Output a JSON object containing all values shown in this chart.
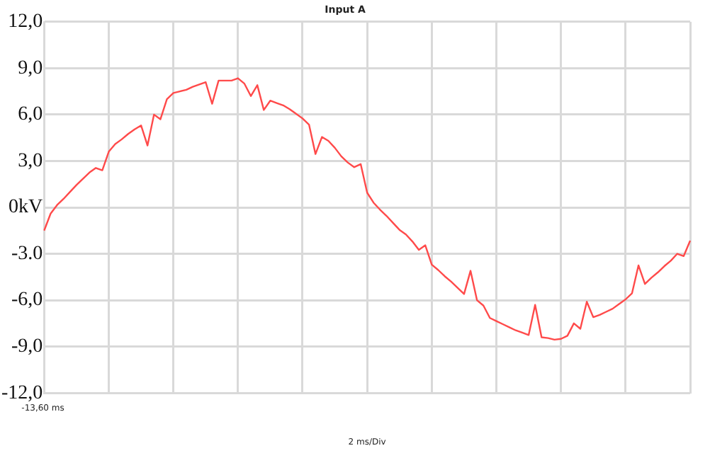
{
  "chart_data": {
    "type": "line",
    "title": "Input A",
    "xlabel": "2 ms/Div",
    "annotations": [
      "-13,60 ms"
    ],
    "categories": [
      null,
      null,
      null,
      null,
      null,
      null,
      null,
      null,
      null,
      null,
      null,
      null,
      null,
      null,
      null,
      null,
      null,
      null,
      null,
      null,
      null,
      null,
      null,
      null,
      null,
      null,
      null,
      null,
      null,
      null,
      null,
      null,
      null,
      null,
      null,
      null,
      null,
      null,
      null,
      null,
      null,
      null,
      null,
      null,
      null,
      null,
      null,
      null,
      null,
      null,
      null,
      null,
      null,
      null,
      null,
      null,
      null,
      null,
      null,
      null,
      null,
      null,
      null,
      null,
      null,
      null,
      null,
      null,
      null,
      null,
      null,
      null,
      null,
      null,
      null,
      null,
      null,
      null,
      null,
      null,
      null,
      null,
      null,
      null,
      null,
      null,
      null,
      null,
      null,
      null,
      null,
      null,
      null,
      null,
      null,
      null,
      null,
      null,
      null,
      null,
      null
    ],
    "series": [
      {
        "color": "#ff4a4a",
        "values": [
          -1.5,
          -0.4,
          0.15,
          0.55,
          1.0,
          1.45,
          1.85,
          2.25,
          2.55,
          2.4,
          3.6,
          4.1,
          4.4,
          4.75,
          5.05,
          5.3,
          4.0,
          6.0,
          5.7,
          7.0,
          7.4,
          7.5,
          7.6,
          7.8,
          7.95,
          8.1,
          6.7,
          8.2,
          8.2,
          8.2,
          8.35,
          8.0,
          7.2,
          7.9,
          6.3,
          6.9,
          6.75,
          6.6,
          6.35,
          6.05,
          5.75,
          5.35,
          3.45,
          4.55,
          4.3,
          3.85,
          3.3,
          2.9,
          2.6,
          2.8,
          0.95,
          0.3,
          -0.15,
          -0.55,
          -1.0,
          -1.45,
          -1.75,
          -2.2,
          -2.75,
          -2.45,
          -3.7,
          -4.05,
          -4.45,
          -4.8,
          -5.2,
          -5.6,
          -4.1,
          -6.0,
          -6.35,
          -7.15,
          -7.35,
          -7.55,
          -7.75,
          -7.95,
          -8.1,
          -8.25,
          -6.3,
          -8.4,
          -8.45,
          -8.55,
          -8.5,
          -8.3,
          -7.5,
          -7.85,
          -6.1,
          -7.1,
          -6.95,
          -6.75,
          -6.55,
          -6.25,
          -5.95,
          -5.55,
          -3.75,
          -4.95,
          -4.55,
          -4.2,
          -3.8,
          -3.45,
          -3.0,
          -3.15,
          -2.15
        ]
      }
    ],
    "ylim": [
      -12,
      12
    ],
    "yticks": [
      {
        "value": -12,
        "label": "-12,0"
      },
      {
        "value": -9,
        "label": "-9,0"
      },
      {
        "value": -6,
        "label": "-6,0"
      },
      {
        "value": -3,
        "label": "-3.0"
      },
      {
        "value": 0,
        "label": "0kV"
      },
      {
        "value": 3,
        "label": "3,0"
      },
      {
        "value": 6,
        "label": "6,0"
      },
      {
        "value": 9,
        "label": "9,0"
      },
      {
        "value": 12,
        "label": "12,0"
      }
    ],
    "grid": true,
    "legend": false,
    "marker": "none",
    "line_style": "solid"
  }
}
